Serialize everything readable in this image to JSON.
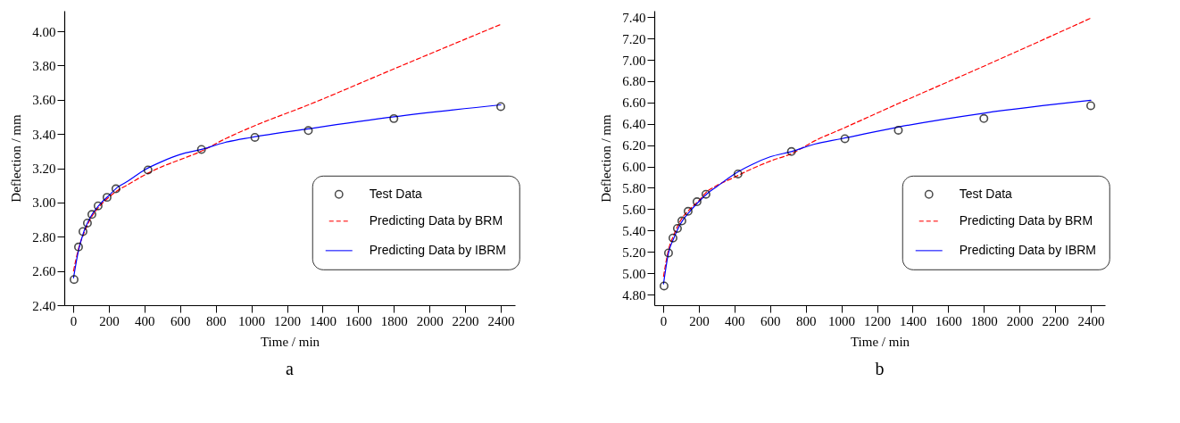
{
  "chart_data": [
    {
      "type": "scatter",
      "xlabel": "Time / min",
      "ylabel": "Deflection / mm",
      "annotations": [
        "a"
      ],
      "legend": "right",
      "grid": false,
      "xlim": [
        -50,
        2480
      ],
      "xticks": [
        0,
        200,
        400,
        600,
        800,
        1000,
        1200,
        1400,
        1600,
        1800,
        2000,
        2200,
        2400
      ],
      "ylim": [
        2.4,
        4.12
      ],
      "yticks": [
        {
          "value": 2.4,
          "label": "2.40"
        },
        {
          "value": 2.6,
          "label": "2.60"
        },
        {
          "value": 2.8,
          "label": "2.80"
        },
        {
          "value": 3.0,
          "label": "3.00"
        },
        {
          "value": 3.2,
          "label": "3.20"
        },
        {
          "value": 3.4,
          "label": "3.40"
        },
        {
          "value": 3.6,
          "label": "3.60"
        },
        {
          "value": 3.8,
          "label": "3.80"
        },
        {
          "value": 4.0,
          "label": "4.00"
        }
      ],
      "series": [
        {
          "name": "Test Data",
          "type": "scatter",
          "marker": "circle",
          "color": "#000000",
          "x": [
            5,
            30,
            55,
            80,
            105,
            140,
            190,
            240,
            420,
            720,
            1020,
            1320,
            1800,
            2400
          ],
          "values": [
            2.55,
            2.74,
            2.83,
            2.88,
            2.93,
            2.98,
            3.03,
            3.08,
            3.19,
            3.31,
            3.38,
            3.42,
            3.49,
            3.56
          ]
        },
        {
          "name": "Predicting Data by BRM",
          "type": "line",
          "line_style": "dashed",
          "color": "#ff0000",
          "x": [
            2,
            30,
            60,
            100,
            150,
            200,
            250,
            300,
            400,
            500,
            600,
            720,
            850,
            1000,
            1320,
            1800,
            2400
          ],
          "values": [
            2.6,
            2.73,
            2.82,
            2.91,
            2.98,
            3.03,
            3.07,
            3.1,
            3.16,
            3.21,
            3.25,
            3.3,
            3.37,
            3.44,
            3.57,
            3.78,
            4.04
          ]
        },
        {
          "name": "Predicting Data by IBRM",
          "type": "line",
          "line_style": "solid",
          "color": "#0000ff",
          "x": [
            2,
            30,
            60,
            100,
            150,
            200,
            250,
            300,
            400,
            500,
            600,
            720,
            850,
            1000,
            1320,
            1800,
            2400
          ],
          "values": [
            2.56,
            2.72,
            2.83,
            2.92,
            2.99,
            3.04,
            3.09,
            3.12,
            3.19,
            3.24,
            3.28,
            3.31,
            3.35,
            3.38,
            3.43,
            3.5,
            3.57
          ]
        }
      ]
    },
    {
      "type": "scatter",
      "xlabel": "Time / min",
      "ylabel": "Deflection / mm",
      "annotations": [
        "b"
      ],
      "legend": "right",
      "grid": false,
      "xlim": [
        -50,
        2480
      ],
      "xticks": [
        0,
        200,
        400,
        600,
        800,
        1000,
        1200,
        1400,
        1600,
        1800,
        2000,
        2200,
        2400
      ],
      "ylim": [
        4.7,
        7.46
      ],
      "yticks": [
        {
          "value": 4.8,
          "label": "4.80"
        },
        {
          "value": 5.0,
          "label": "5.00"
        },
        {
          "value": 5.2,
          "label": "5.20"
        },
        {
          "value": 5.4,
          "label": "5.40"
        },
        {
          "value": 5.6,
          "label": "5.60"
        },
        {
          "value": 5.8,
          "label": "5.80"
        },
        {
          "value": 6.0,
          "label": "6.00"
        },
        {
          "value": 6.2,
          "label": "6.20"
        },
        {
          "value": 6.4,
          "label": "6.40"
        },
        {
          "value": 6.6,
          "label": "6.60"
        },
        {
          "value": 6.8,
          "label": "6.80"
        },
        {
          "value": 7.0,
          "label": "7.00"
        },
        {
          "value": 7.2,
          "label": "7.20"
        },
        {
          "value": 7.4,
          "label": "7.40"
        }
      ],
      "series": [
        {
          "name": "Test Data",
          "type": "scatter",
          "marker": "circle",
          "color": "#000000",
          "x": [
            5,
            30,
            55,
            80,
            105,
            140,
            190,
            240,
            420,
            720,
            1020,
            1320,
            1800,
            2400
          ],
          "values": [
            4.88,
            5.19,
            5.33,
            5.42,
            5.49,
            5.58,
            5.67,
            5.74,
            5.93,
            6.14,
            6.26,
            6.34,
            6.45,
            6.57
          ]
        },
        {
          "name": "Predicting Data by BRM",
          "type": "line",
          "line_style": "dashed",
          "color": "#ff0000",
          "x": [
            2,
            30,
            60,
            100,
            150,
            200,
            250,
            300,
            400,
            500,
            600,
            720,
            850,
            1000,
            1320,
            1800,
            2400
          ],
          "values": [
            4.97,
            5.22,
            5.36,
            5.5,
            5.6,
            5.68,
            5.77,
            5.82,
            5.9,
            5.98,
            6.05,
            6.12,
            6.24,
            6.35,
            6.59,
            6.94,
            7.39
          ]
        },
        {
          "name": "Predicting Data by IBRM",
          "type": "line",
          "line_style": "solid",
          "color": "#0000ff",
          "x": [
            2,
            30,
            60,
            100,
            150,
            200,
            250,
            300,
            400,
            500,
            600,
            720,
            850,
            1000,
            1320,
            1800,
            2400
          ],
          "values": [
            4.9,
            5.19,
            5.33,
            5.47,
            5.58,
            5.67,
            5.75,
            5.81,
            5.93,
            6.02,
            6.09,
            6.14,
            6.21,
            6.26,
            6.37,
            6.5,
            6.62
          ]
        }
      ]
    }
  ]
}
